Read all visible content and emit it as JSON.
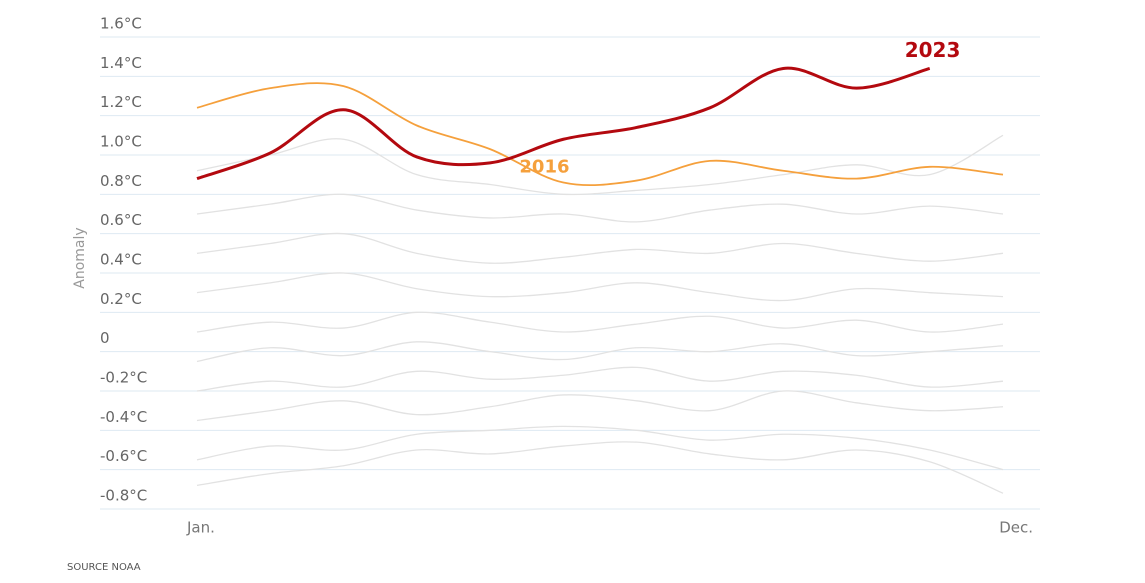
{
  "chart_data": {
    "type": "line",
    "y_label": "Anomaly",
    "source": "SOURCE NOAA",
    "categories": [
      "Jan.",
      null,
      null,
      null,
      null,
      null,
      null,
      null,
      null,
      null,
      null,
      "Dec."
    ],
    "ylim": [
      -0.8,
      1.6
    ],
    "yticks": [
      {
        "value": -0.8,
        "label": "-0.8°C"
      },
      {
        "value": -0.6,
        "label": "-0.6°C"
      },
      {
        "value": -0.4,
        "label": "-0.4°C"
      },
      {
        "value": -0.2,
        "label": "-0.2°C"
      },
      0,
      {
        "value": 0.2,
        "label": "0.2°C"
      },
      {
        "value": 0.4,
        "label": "0.4°C"
      },
      {
        "value": 0.6,
        "label": "0.6°C"
      },
      {
        "value": 0.8,
        "label": "0.8°C"
      },
      {
        "value": 1.0,
        "label": "1.0°C"
      },
      {
        "value": 1.2,
        "label": "1.2°C"
      },
      {
        "value": 1.4,
        "label": "1.4°C"
      },
      {
        "value": 1.6,
        "label": "1.6°C"
      }
    ],
    "grid": true,
    "series": [
      {
        "color": "#e2e2e2",
        "values": [
          -0.55,
          -0.48,
          -0.5,
          -0.42,
          -0.4,
          -0.38,
          -0.4,
          -0.45,
          -0.42,
          -0.44,
          -0.5,
          -0.6
        ]
      },
      {
        "color": "#e2e2e2",
        "values": [
          -0.35,
          -0.3,
          -0.25,
          -0.32,
          -0.28,
          -0.22,
          -0.25,
          -0.3,
          -0.2,
          -0.26,
          -0.3,
          -0.28
        ]
      },
      {
        "color": "#e2e2e2",
        "values": [
          -0.2,
          -0.15,
          -0.18,
          -0.1,
          -0.14,
          -0.12,
          -0.08,
          -0.15,
          -0.1,
          -0.12,
          -0.18,
          -0.15
        ]
      },
      {
        "color": "#e2e2e2",
        "values": [
          -0.05,
          0.02,
          -0.02,
          0.05,
          0.0,
          -0.04,
          0.02,
          0.0,
          0.04,
          -0.02,
          0.0,
          0.03
        ]
      },
      {
        "color": "#e2e2e2",
        "values": [
          0.1,
          0.15,
          0.12,
          0.2,
          0.15,
          0.1,
          0.14,
          0.18,
          0.12,
          0.16,
          0.1,
          0.14
        ]
      },
      {
        "color": "#e2e2e2",
        "values": [
          0.3,
          0.35,
          0.4,
          0.32,
          0.28,
          0.3,
          0.35,
          0.3,
          0.26,
          0.32,
          0.3,
          0.28
        ]
      },
      {
        "color": "#e2e2e2",
        "values": [
          0.5,
          0.55,
          0.6,
          0.5,
          0.45,
          0.48,
          0.52,
          0.5,
          0.55,
          0.5,
          0.46,
          0.5
        ]
      },
      {
        "color": "#e2e2e2",
        "values": [
          0.7,
          0.75,
          0.8,
          0.72,
          0.68,
          0.7,
          0.66,
          0.72,
          0.75,
          0.7,
          0.74,
          0.7
        ]
      },
      {
        "color": "#e2e2e2",
        "values": [
          0.92,
          1.0,
          1.08,
          0.9,
          0.85,
          0.8,
          0.82,
          0.85,
          0.9,
          0.95,
          0.9,
          1.1
        ]
      },
      {
        "color": "#e2e2e2",
        "values": [
          -0.68,
          -0.62,
          -0.58,
          -0.5,
          -0.52,
          -0.48,
          -0.46,
          -0.52,
          -0.55,
          -0.5,
          -0.56,
          -0.72
        ]
      },
      {
        "name": "2016",
        "color": "#f5a03c",
        "values": [
          1.24,
          1.34,
          1.35,
          1.15,
          1.03,
          0.86,
          0.87,
          0.97,
          0.92,
          0.88,
          0.94,
          0.9
        ]
      },
      {
        "name": "2023",
        "color": "#b3090f",
        "values": [
          0.88,
          1.01,
          1.23,
          0.99,
          0.96,
          1.08,
          1.14,
          1.24,
          1.44,
          1.34,
          1.44,
          null
        ]
      }
    ]
  }
}
